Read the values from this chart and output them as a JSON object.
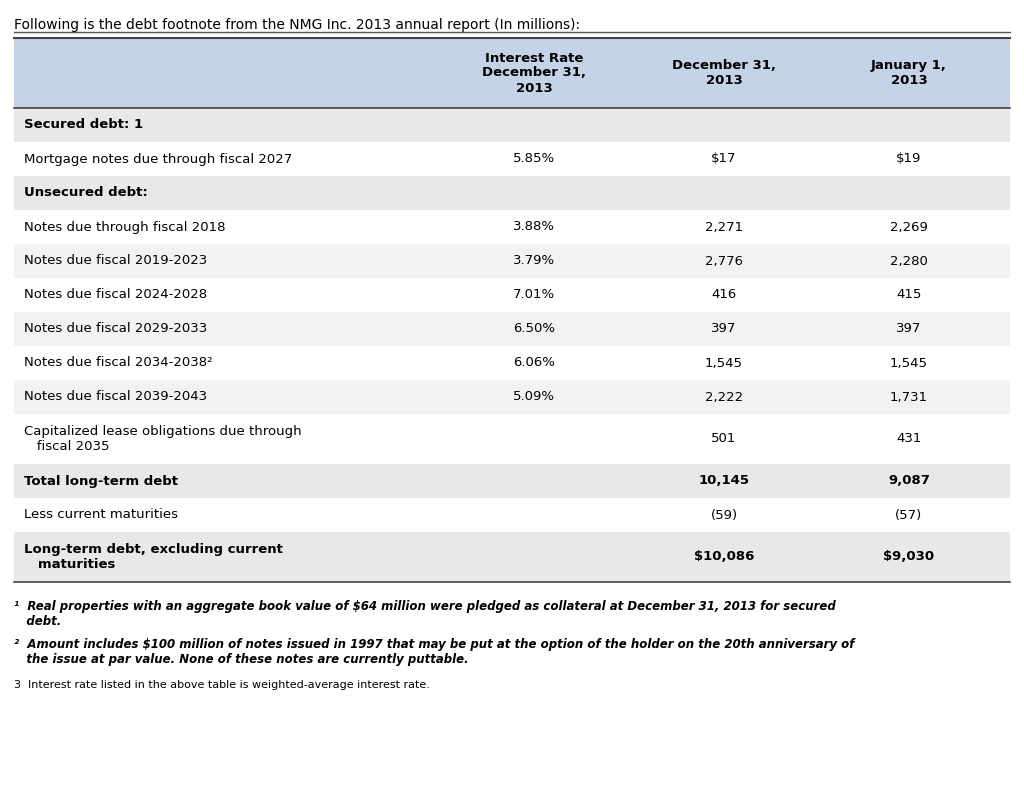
{
  "title_text": "Following is the debt footnote from the NMG Inc. 2013 annual report (In millions):",
  "header_bg": "#c5d3e8",
  "row_bg_gray": "#e8e8e8",
  "row_bg_white": "#ffffff",
  "col_headers": [
    "",
    "Interest Rate\nDecember 31,\n2013",
    "December 31,\n2013",
    "January 1,\n2013"
  ],
  "rows": [
    {
      "label": "Secured debt: 1",
      "bold": true,
      "rate": "",
      "dec2013": "",
      "jan2013": "",
      "bg": "#e8e8e8"
    },
    {
      "label": "Mortgage notes due through fiscal 2027",
      "bold": false,
      "rate": "5.85%",
      "dec2013": "$17",
      "jan2013": "$19",
      "bg": "#ffffff"
    },
    {
      "label": "Unsecured debt:",
      "bold": true,
      "rate": "",
      "dec2013": "",
      "jan2013": "",
      "bg": "#e8e8e8"
    },
    {
      "label": "Notes due through fiscal 2018",
      "bold": false,
      "rate": "3.88%",
      "dec2013": "2,271",
      "jan2013": "2,269",
      "bg": "#ffffff"
    },
    {
      "label": "Notes due fiscal 2019-2023",
      "bold": false,
      "rate": "3.79%",
      "dec2013": "2,776",
      "jan2013": "2,280",
      "bg": "#f2f2f2"
    },
    {
      "label": "Notes due fiscal 2024-2028",
      "bold": false,
      "rate": "7.01%",
      "dec2013": "416",
      "jan2013": "415",
      "bg": "#ffffff"
    },
    {
      "label": "Notes due fiscal 2029-2033",
      "bold": false,
      "rate": "6.50%",
      "dec2013": "397",
      "jan2013": "397",
      "bg": "#f2f2f2"
    },
    {
      "label": "Notes due fiscal 2034-2038²",
      "bold": false,
      "rate": "6.06%",
      "dec2013": "1,545",
      "jan2013": "1,545",
      "bg": "#ffffff"
    },
    {
      "label": "Notes due fiscal 2039-2043",
      "bold": false,
      "rate": "5.09%",
      "dec2013": "2,222",
      "jan2013": "1,731",
      "bg": "#f2f2f2"
    },
    {
      "label": "Capitalized lease obligations due through\n   fiscal 2035",
      "bold": false,
      "rate": "",
      "dec2013": "501",
      "jan2013": "431",
      "bg": "#ffffff",
      "multiline": true
    },
    {
      "label": "Total long-term debt",
      "bold": true,
      "rate": "",
      "dec2013": "10,145",
      "jan2013": "9,087",
      "bg": "#e8e8e8"
    },
    {
      "label": "Less current maturities",
      "bold": false,
      "rate": "",
      "dec2013": "(59)",
      "jan2013": "(57)",
      "bg": "#ffffff"
    },
    {
      "label": "Long-term debt, excluding current\n   maturities",
      "bold": true,
      "rate": "",
      "dec2013": "$10,086",
      "jan2013": "$9,030",
      "bg": "#e8e8e8",
      "multiline": true
    }
  ],
  "footnote1_super": "¹",
  "footnote1_text": "  Real properties with an aggregate book value of $64 million were pledged as collateral at December 31, 2013 for secured\n   debt.",
  "footnote2_super": "²",
  "footnote2_text": "  Amount includes $100 million of notes issued in 1997 that may be put at the option of the holder on the 20th anniversary of\n   the issue at par value. None of these notes are currently puttable.",
  "footnote3_text": "3  Interest rate listed in the above table is weighted-average interest rate."
}
